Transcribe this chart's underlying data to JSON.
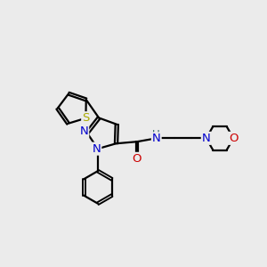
{
  "bg_color": "#ebebeb",
  "bond_color": "#000000",
  "bond_width": 1.6,
  "atom_colors": {
    "N": "#0000cc",
    "O": "#cc0000",
    "S": "#aaaa00",
    "H": "#336666"
  }
}
